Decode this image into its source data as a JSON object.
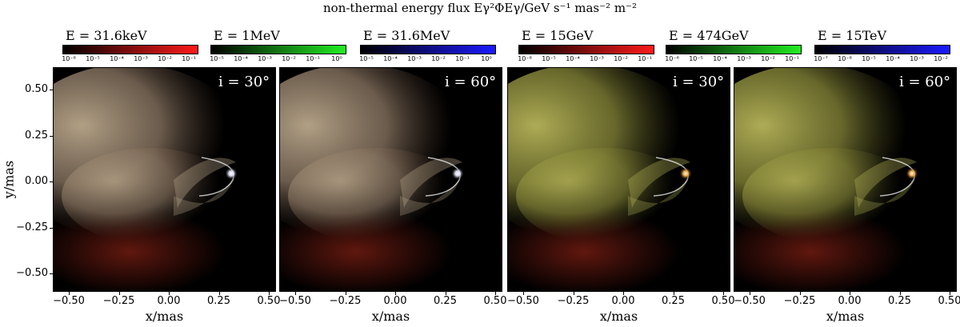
{
  "figure": {
    "title": "non-thermal energy flux Eγ²ΦEγ/GeV s⁻¹ mas⁻² m⁻²"
  },
  "colorbars": [
    {
      "label": "E = 31.6keV",
      "color": "#ff1a1a",
      "ticks": [
        "10⁻⁶",
        "10⁻⁵",
        "10⁻⁴",
        "10⁻³",
        "10⁻²",
        "10⁻¹"
      ]
    },
    {
      "label": "E = 1MeV",
      "color": "#22ee22",
      "ticks": [
        "10⁻⁵",
        "10⁻⁴",
        "10⁻³",
        "10⁻²",
        "10⁻¹",
        "10⁰"
      ]
    },
    {
      "label": "E = 31.6MeV",
      "color": "#1a1aff",
      "ticks": [
        "10⁻⁵",
        "10⁻⁴",
        "10⁻³",
        "10⁻²",
        "10⁻¹",
        "10⁰"
      ]
    },
    {
      "label": "E = 15GeV",
      "color": "#ff1a1a",
      "ticks": [
        "10⁻⁶",
        "10⁻⁵",
        "10⁻⁴",
        "10⁻³",
        "10⁻²",
        "10⁻¹"
      ]
    },
    {
      "label": "E = 474GeV",
      "color": "#22ee22",
      "ticks": [
        "10⁻⁶",
        "10⁻⁵",
        "10⁻⁴",
        "10⁻³",
        "10⁻²",
        "10⁻¹"
      ]
    },
    {
      "label": "E = 15TeV",
      "color": "#1a1aff",
      "ticks": [
        "10⁻⁷",
        "10⁻⁶",
        "10⁻⁵",
        "10⁻⁴",
        "10⁻³",
        "10⁻²"
      ]
    }
  ],
  "panels": [
    {
      "inclination": "i = 30°",
      "palette": "rgb"
    },
    {
      "inclination": "i = 60°",
      "palette": "rgb"
    },
    {
      "inclination": "i = 30°",
      "palette": "yellow"
    },
    {
      "inclination": "i = 60°",
      "palette": "yellow"
    }
  ],
  "axes": {
    "xlabel": "x/mas",
    "ylabel": "y/mas",
    "xticks": [
      "−0.50",
      "−0.25",
      "0.00",
      "0.25",
      "0.50"
    ],
    "yticks": [
      "0.50",
      "0.25",
      "0.00",
      "−0.25",
      "−0.50"
    ]
  }
}
